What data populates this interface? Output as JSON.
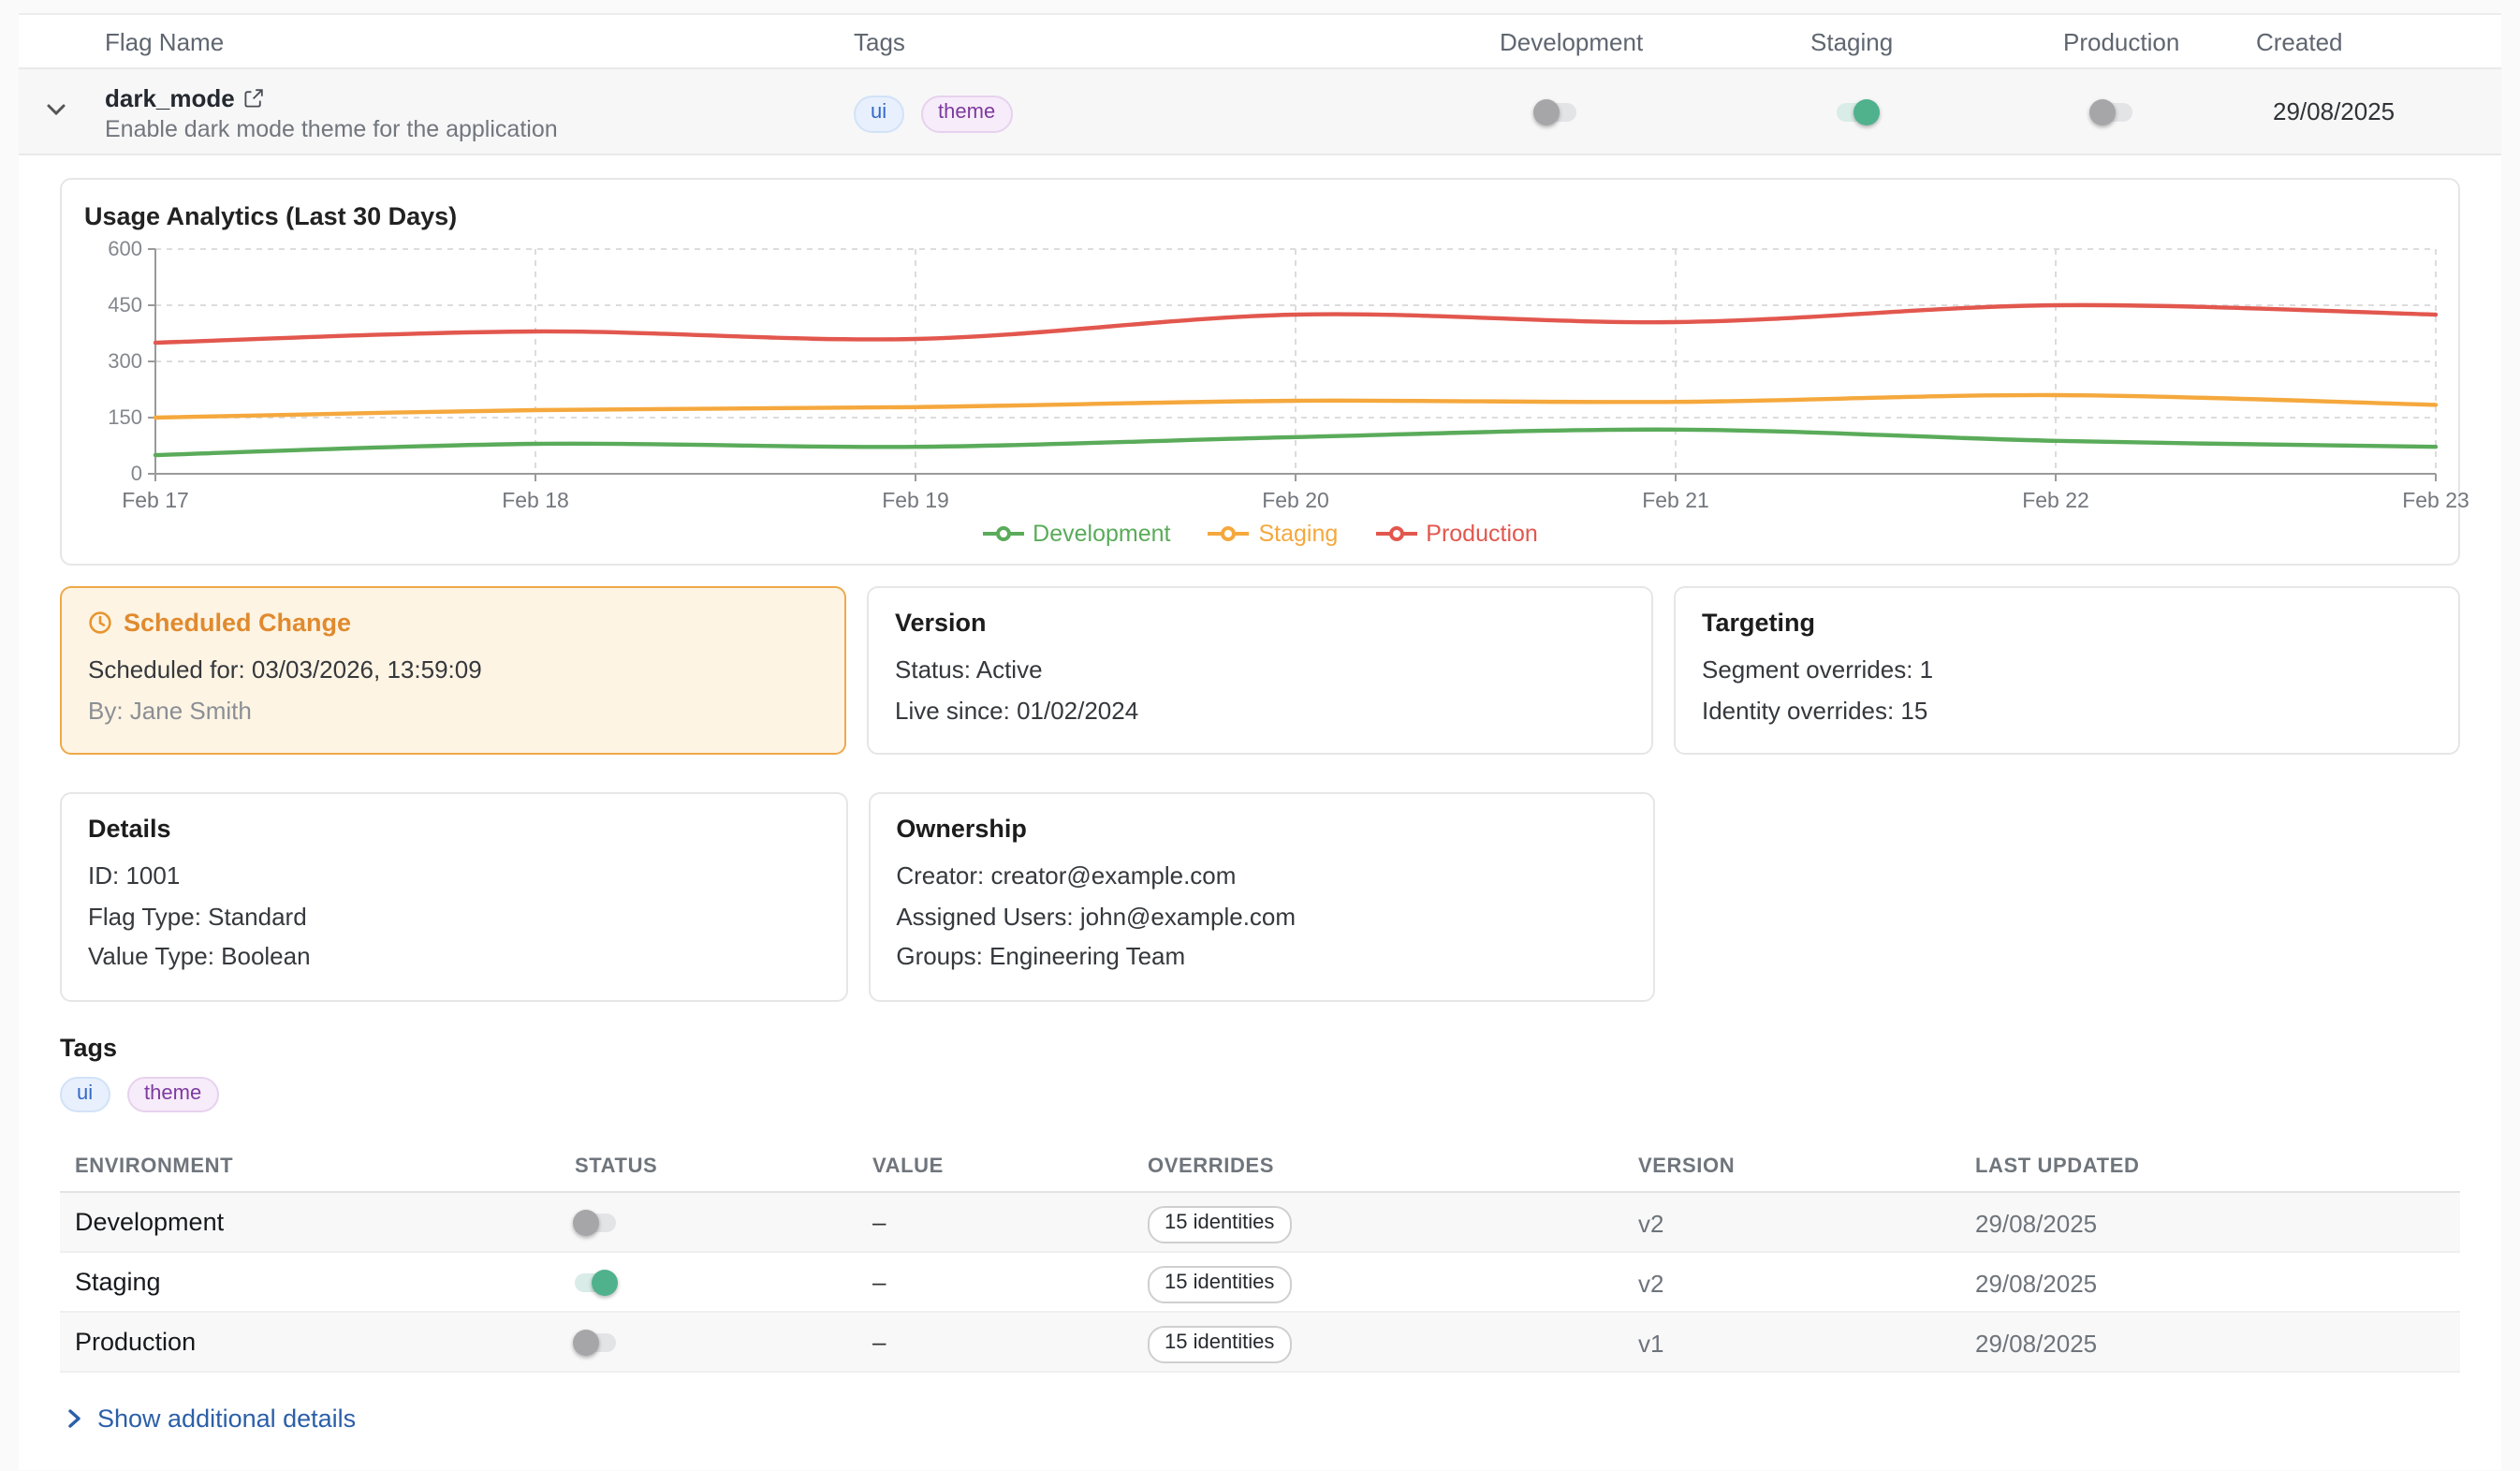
{
  "flag_table": {
    "columns": {
      "flag_name": "Flag Name",
      "tags": "Tags",
      "development": "Development",
      "staging": "Staging",
      "production": "Production",
      "created": "Created"
    },
    "row": {
      "name": "dark_mode",
      "description": "Enable dark mode theme for the application",
      "tags": [
        {
          "label": "ui",
          "style": "blue"
        },
        {
          "label": "theme",
          "style": "purple"
        }
      ],
      "toggles": {
        "development": false,
        "staging": true,
        "production": false
      },
      "created": "29/08/2025"
    }
  },
  "chart_data": {
    "type": "line",
    "title": "Usage Analytics (Last 30 Days)",
    "x": [
      "Feb 17",
      "Feb 18",
      "Feb 19",
      "Feb 20",
      "Feb 21",
      "Feb 22",
      "Feb 23"
    ],
    "series": [
      {
        "name": "Development",
        "color": "#5aab5a",
        "values": [
          50,
          80,
          72,
          98,
          118,
          88,
          72
        ]
      },
      {
        "name": "Staging",
        "color": "#f5a83d",
        "values": [
          150,
          170,
          178,
          195,
          192,
          210,
          184
        ]
      },
      {
        "name": "Production",
        "color": "#e2574e",
        "values": [
          350,
          380,
          360,
          425,
          405,
          450,
          425
        ]
      }
    ],
    "ylim": [
      0,
      600
    ],
    "yticks": [
      0,
      150,
      300,
      450,
      600
    ],
    "grid": true,
    "legend_position": "bottom"
  },
  "cards": {
    "scheduled": {
      "title": "Scheduled Change",
      "scheduled_for": "Scheduled for: 03/03/2026, 13:59:09",
      "by": "By: Jane Smith",
      "accent_color": "#efa94a"
    },
    "version": {
      "title": "Version",
      "line1": "Status: Active",
      "line2": "Live since: 01/02/2024"
    },
    "targeting": {
      "title": "Targeting",
      "line1": "Segment overrides: 1",
      "line2": "Identity overrides: 15"
    },
    "details": {
      "title": "Details",
      "line1": "ID: 1001",
      "line2": "Flag Type: Standard",
      "line3": "Value Type: Boolean"
    },
    "ownership": {
      "title": "Ownership",
      "line1": "Creator: creator@example.com",
      "line2": "Assigned Users: john@example.com",
      "line3": "Groups: Engineering Team"
    }
  },
  "tags_section": {
    "title": "Tags",
    "tags": [
      {
        "label": "ui",
        "style": "blue"
      },
      {
        "label": "theme",
        "style": "purple"
      }
    ]
  },
  "environments_table": {
    "columns": [
      "ENVIRONMENT",
      "STATUS",
      "VALUE",
      "OVERRIDES",
      "VERSION",
      "LAST UPDATED"
    ],
    "rows": [
      {
        "environment": "Development",
        "status_on": false,
        "value": "–",
        "overrides": "15 identities",
        "version": "v2",
        "last_updated": "29/08/2025"
      },
      {
        "environment": "Staging",
        "status_on": true,
        "value": "–",
        "overrides": "15 identities",
        "version": "v2",
        "last_updated": "29/08/2025"
      },
      {
        "environment": "Production",
        "status_on": false,
        "value": "–",
        "overrides": "15 identities",
        "version": "v1",
        "last_updated": "29/08/2025"
      }
    ]
  },
  "footer": {
    "show_details": "Show additional details"
  },
  "colors": {
    "toggle_on": "#4fb28d",
    "link_blue": "#2b5fa8",
    "scheduled_bg": "#fdf4e4",
    "scheduled_border": "#efa94a",
    "chip_blue_text": "#3668c8",
    "chip_purple_text": "#7d3aa0"
  }
}
